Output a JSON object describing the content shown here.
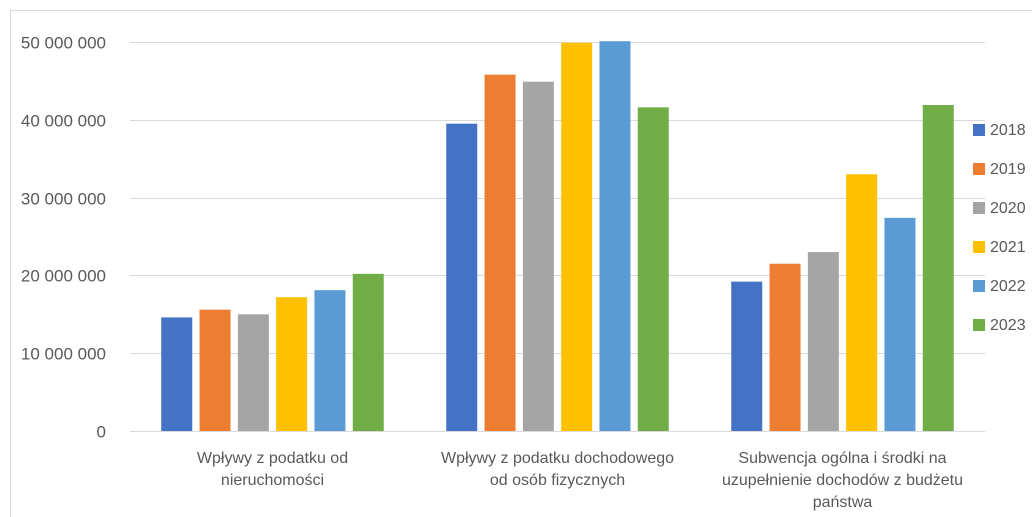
{
  "chart_data": {
    "type": "bar",
    "title": "",
    "xlabel": "",
    "ylabel": "",
    "ylim": [
      0,
      50000000
    ],
    "yticks": [
      {
        "value": 0,
        "label": "0"
      },
      {
        "value": 10000000,
        "label": "10 000 000"
      },
      {
        "value": 20000000,
        "label": "20 000 000"
      },
      {
        "value": 30000000,
        "label": "30 000 000"
      },
      {
        "value": 40000000,
        "label": "40 000 000"
      },
      {
        "value": 50000000,
        "label": "50 000 000"
      }
    ],
    "grid": true,
    "legend_position": "right",
    "categories": [
      [
        "Wpływy z podatku od",
        "nieruchomości"
      ],
      [
        "Wpływy z podatku dochodowego",
        "od osób fizycznych"
      ],
      [
        "Subwencja ogólna i środki na",
        "uzupełnienie dochodów z budżetu",
        "państwa"
      ]
    ],
    "series": [
      {
        "name": "2018",
        "color": "#4472C4",
        "values": [
          14600000,
          39500000,
          19200000
        ]
      },
      {
        "name": "2019",
        "color": "#ED7D31",
        "values": [
          15600000,
          45800000,
          21500000
        ]
      },
      {
        "name": "2020",
        "color": "#A5A5A5",
        "values": [
          15000000,
          44900000,
          23000000
        ]
      },
      {
        "name": "2021",
        "color": "#FFC000",
        "values": [
          17200000,
          49900000,
          33000000
        ]
      },
      {
        "name": "2022",
        "color": "#5B9BD5",
        "values": [
          18100000,
          50100000,
          27400000
        ]
      },
      {
        "name": "2023",
        "color": "#70AD47",
        "values": [
          20200000,
          41600000,
          41900000
        ]
      }
    ]
  }
}
